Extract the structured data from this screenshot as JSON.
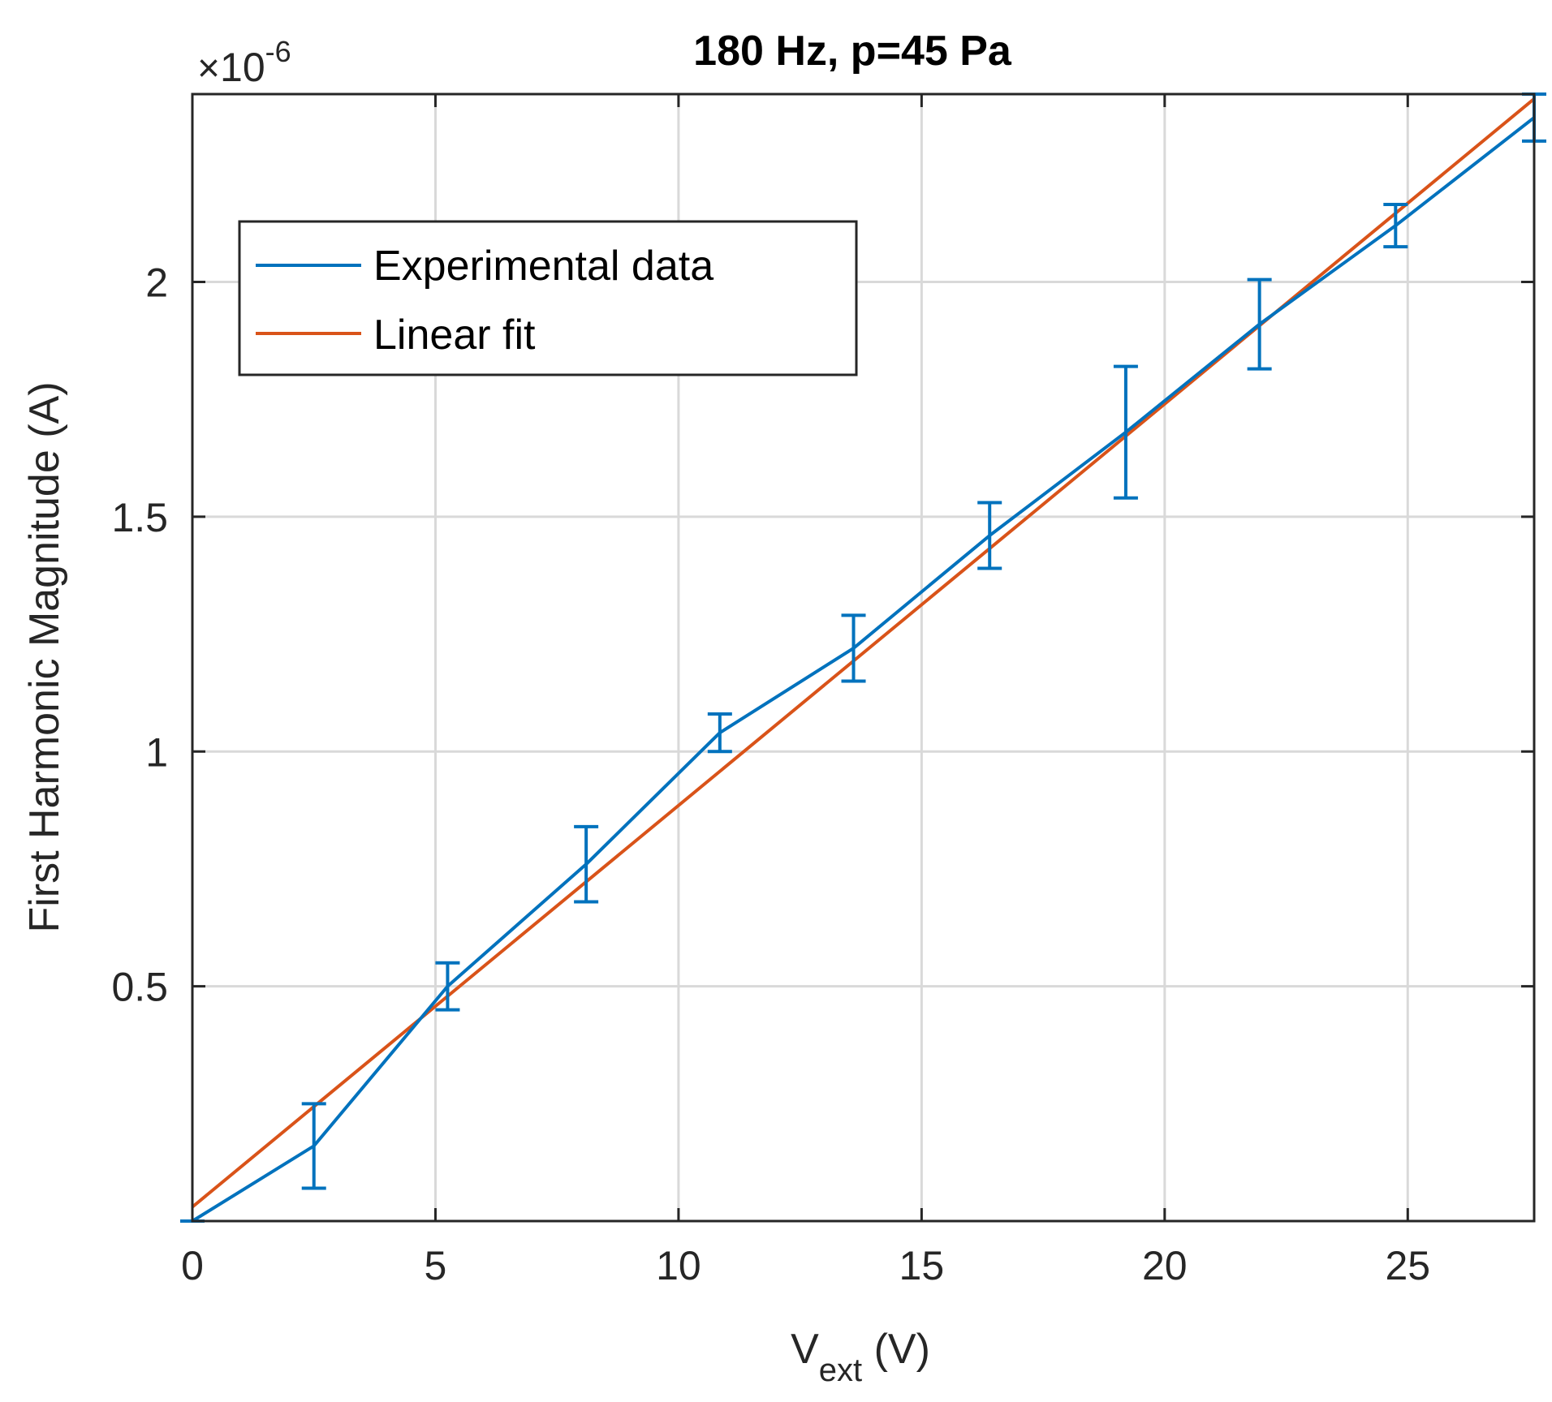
{
  "chart_data": {
    "type": "line",
    "title": "180 Hz, p=45 Pa",
    "xlabel": {
      "main": "V",
      "sub": "ext",
      "suffix": " (V)"
    },
    "ylabel": "First Harmonic Magnitude (A)",
    "y_exponent": {
      "base": "10",
      "power": "-6"
    },
    "xlim": [
      0,
      27.6
    ],
    "ylim": [
      0.0,
      2.4
    ],
    "y_scale_factor": 1e-06,
    "x_ticks": [
      0,
      5,
      10,
      15,
      20,
      25
    ],
    "x_tick_labels": [
      "0",
      "5",
      "10",
      "15",
      "20",
      "25"
    ],
    "y_ticks": [
      0.5,
      1.0,
      1.5,
      2.0
    ],
    "y_tick_labels": [
      "0.5",
      "1",
      "1.5",
      "2"
    ],
    "grid": true,
    "legend_position": "upper-left",
    "series": [
      {
        "name": "Experimental data",
        "color": "#0072BD",
        "x": [
          0,
          2.5,
          5.25,
          8.1,
          10.85,
          13.6,
          16.4,
          19.2,
          21.95,
          24.75,
          27.6
        ],
        "y": [
          0.0,
          0.16,
          0.5,
          0.76,
          1.04,
          1.22,
          1.46,
          1.68,
          1.91,
          2.12,
          2.35
        ],
        "error_low": [
          0.0,
          0.09,
          0.05,
          0.08,
          0.04,
          0.07,
          0.07,
          0.14,
          0.095,
          0.045,
          0.05
        ],
        "error_high": [
          0.0,
          0.09,
          0.05,
          0.08,
          0.04,
          0.07,
          0.07,
          0.14,
          0.095,
          0.045,
          0.05
        ]
      },
      {
        "name": "Linear fit",
        "color": "#D95319",
        "x": [
          0,
          27.6
        ],
        "y": [
          0.03,
          2.39
        ]
      }
    ]
  }
}
